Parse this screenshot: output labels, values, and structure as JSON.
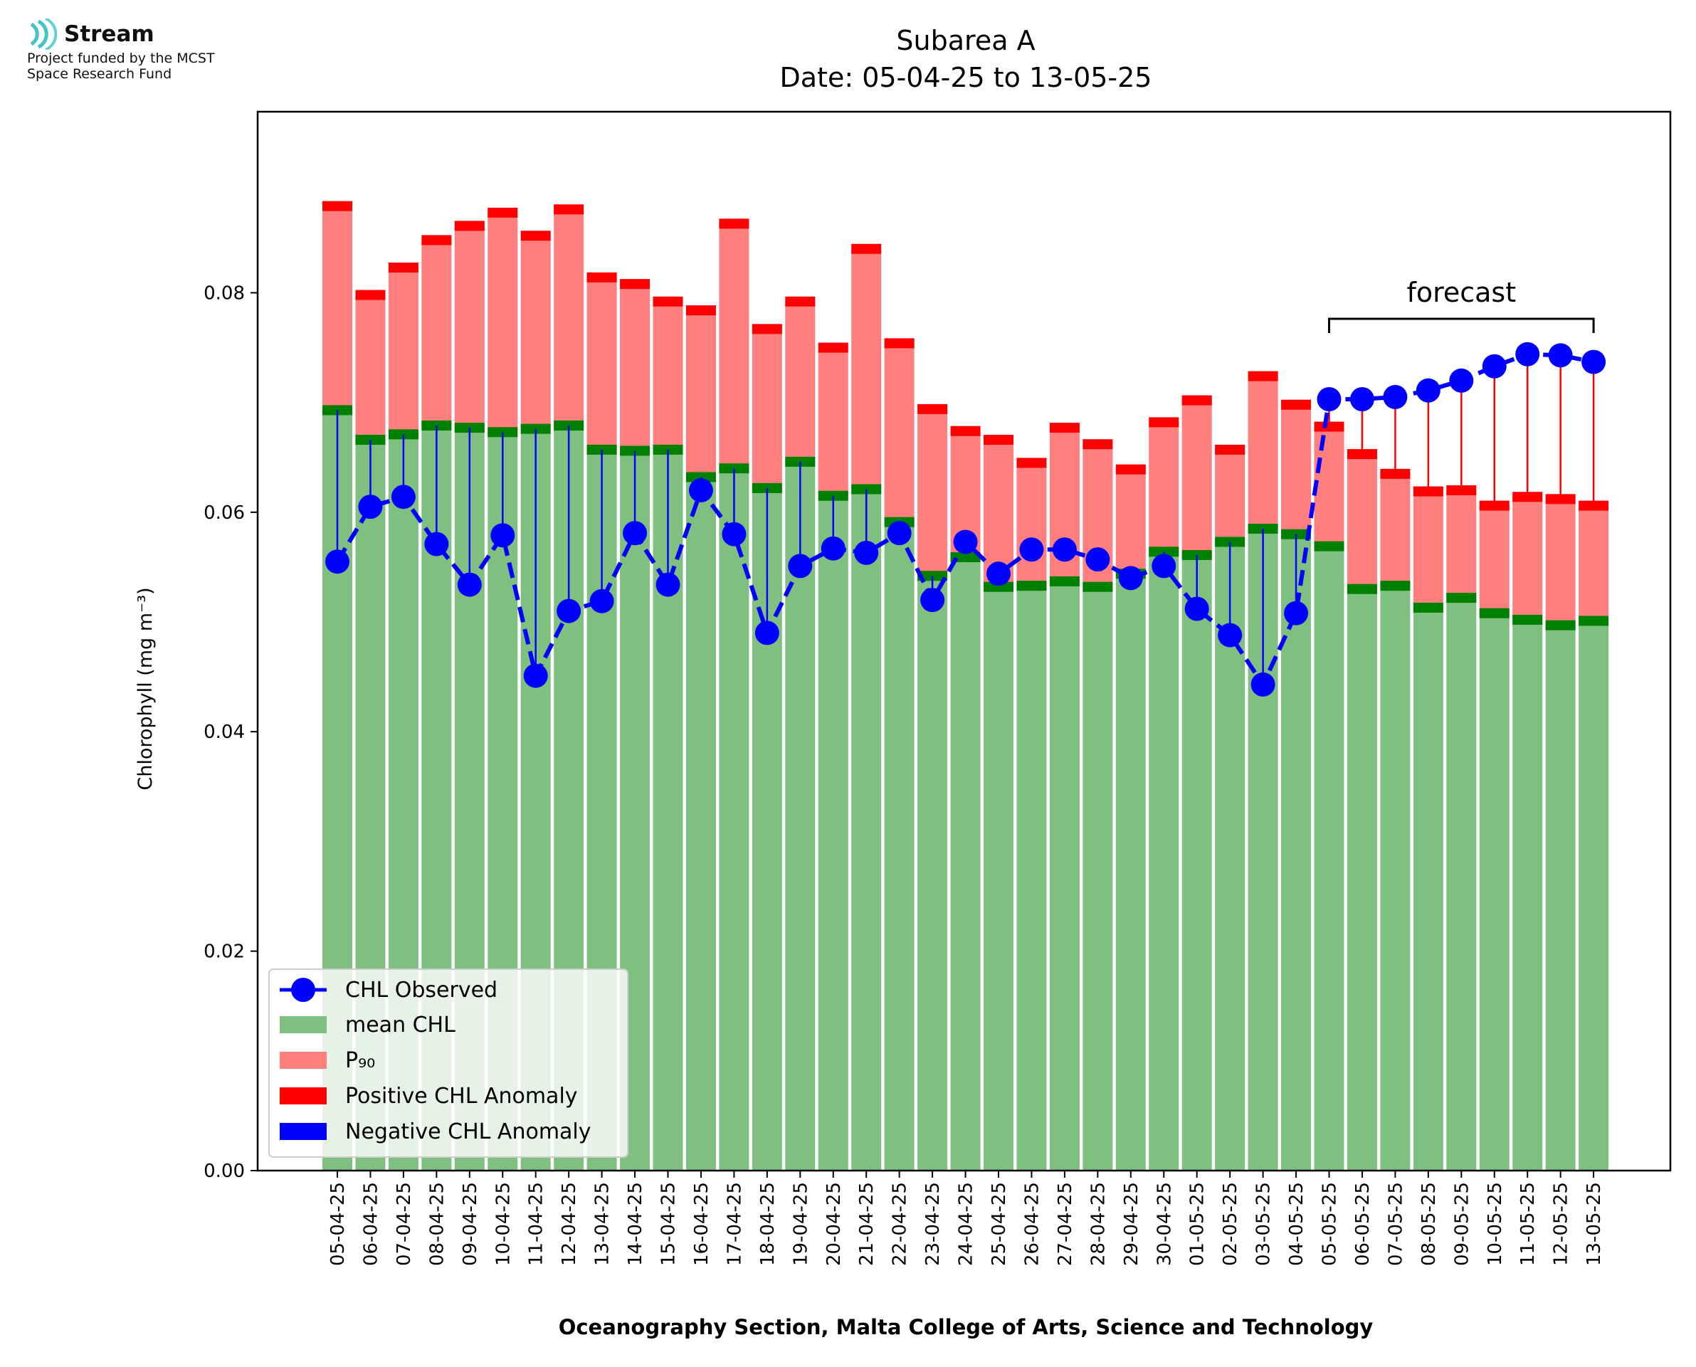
{
  "logo": {
    "name": "Stream",
    "line1": "Project funded by the MCST",
    "line2": "Space Research Fund",
    "color": "#3fc4c9"
  },
  "chart_data": {
    "type": "bar",
    "title": "Subarea A",
    "subtitle": "Date: 05-04-25 to 13-05-25",
    "xlabel": "Oceanography Section, Malta College of Arts, Science and Technology",
    "ylabel": "Chlorophyll (mg m⁻³)",
    "ylim": [
      0,
      0.0965
    ],
    "yticks": [
      "0.00",
      "0.02",
      "0.04",
      "0.06",
      "0.08"
    ],
    "grid": false,
    "legend_position": "lower-left",
    "annotation": "forecast",
    "forecast_range": [
      "05-05-25",
      "13-05-25"
    ],
    "categories": [
      "05-04-25",
      "06-04-25",
      "07-04-25",
      "08-04-25",
      "09-04-25",
      "10-04-25",
      "11-04-25",
      "12-04-25",
      "13-04-25",
      "14-04-25",
      "15-04-25",
      "16-04-25",
      "17-04-25",
      "18-04-25",
      "19-04-25",
      "20-04-25",
      "21-04-25",
      "22-04-25",
      "23-04-25",
      "24-04-25",
      "25-04-25",
      "26-04-25",
      "27-04-25",
      "28-04-25",
      "29-04-25",
      "30-04-25",
      "01-05-25",
      "02-05-25",
      "03-05-25",
      "04-05-25",
      "05-05-25",
      "06-05-25",
      "07-05-25",
      "08-05-25",
      "09-05-25",
      "10-05-25",
      "11-05-25",
      "12-05-25",
      "13-05-25"
    ],
    "series": [
      {
        "name": "CHL Observed",
        "color": "#0000ff",
        "values": [
          0.0555,
          0.0605,
          0.0614,
          0.0571,
          0.0534,
          0.0579,
          0.0451,
          0.051,
          0.0519,
          0.0581,
          0.0534,
          0.062,
          0.058,
          0.049,
          0.0551,
          0.0567,
          0.0563,
          0.0581,
          0.052,
          0.0573,
          0.0544,
          0.0566,
          0.0566,
          0.0557,
          0.054,
          0.0551,
          0.0512,
          0.0488,
          0.0443,
          0.0508,
          0.0703,
          0.0703,
          0.0705,
          0.0711,
          0.072,
          0.0733,
          0.0744,
          0.0743,
          0.0737
        ]
      },
      {
        "name": "mean CHL",
        "color": "#7fbf7f",
        "values": [
          0.0693,
          0.0666,
          0.0671,
          0.0679,
          0.0677,
          0.0673,
          0.0676,
          0.0679,
          0.0657,
          0.0656,
          0.0657,
          0.0632,
          0.064,
          0.0622,
          0.0646,
          0.0615,
          0.0621,
          0.0591,
          0.0542,
          0.0559,
          0.0532,
          0.0533,
          0.0537,
          0.0532,
          0.0544,
          0.0564,
          0.0561,
          0.0573,
          0.0585,
          0.058,
          0.0569,
          0.053,
          0.0533,
          0.0513,
          0.0522,
          0.0508,
          0.0502,
          0.0497,
          0.0501
        ]
      },
      {
        "name": "P₉₀",
        "color": "#ff7f7f",
        "values": [
          0.0879,
          0.0798,
          0.0823,
          0.0848,
          0.0861,
          0.0873,
          0.0852,
          0.0876,
          0.0814,
          0.0808,
          0.0792,
          0.0784,
          0.0863,
          0.0767,
          0.0792,
          0.075,
          0.084,
          0.0754,
          0.0694,
          0.0674,
          0.0666,
          0.0645,
          0.0677,
          0.0662,
          0.0639,
          0.0682,
          0.0702,
          0.0657,
          0.0724,
          0.0698,
          0.0678,
          0.0653,
          0.0635,
          0.0619,
          0.062,
          0.0606,
          0.0614,
          0.0612,
          0.0606
        ]
      },
      {
        "name": "Positive CHL Anomaly",
        "color": "#ff0000"
      },
      {
        "name": "Negative CHL Anomaly",
        "color": "#0000ff"
      }
    ]
  }
}
